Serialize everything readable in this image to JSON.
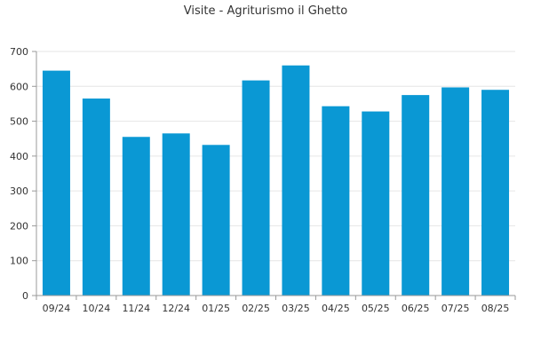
{
  "chart_data": {
    "type": "bar",
    "title": "Visite - Agriturismo il Ghetto",
    "xlabel": "",
    "ylabel": "",
    "categories": [
      "09/24",
      "10/24",
      "11/24",
      "12/24",
      "01/25",
      "02/25",
      "03/25",
      "04/25",
      "05/25",
      "06/25",
      "07/25",
      "08/25"
    ],
    "values": [
      645,
      565,
      455,
      465,
      432,
      617,
      660,
      543,
      528,
      575,
      597,
      590
    ],
    "ylim": [
      0,
      700
    ],
    "yticks": [
      "0",
      "100",
      "200",
      "300",
      "400",
      "500",
      "600",
      "700"
    ],
    "grid": true,
    "bar_color": "#0a98d4"
  }
}
